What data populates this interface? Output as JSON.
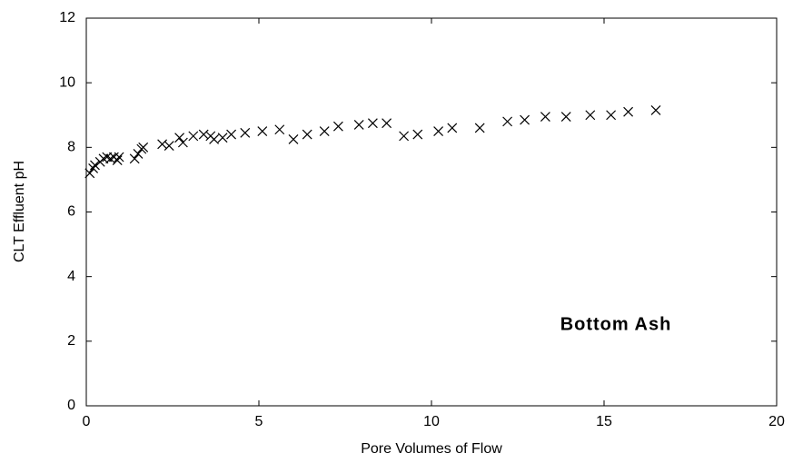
{
  "chart_data": {
    "type": "scatter",
    "x_label": "Pore Volumes of Flow",
    "y_label": "CLT Effluent pH",
    "annotation": "Bottom Ash",
    "color": "#000000",
    "marker": "x",
    "x": [
      0.1,
      0.2,
      0.25,
      0.4,
      0.5,
      0.6,
      0.7,
      0.8,
      0.9,
      0.95,
      1.4,
      1.5,
      1.6,
      1.65,
      2.2,
      2.4,
      2.7,
      2.8,
      3.1,
      3.4,
      3.6,
      3.7,
      3.95,
      4.2,
      4.6,
      5.1,
      5.6,
      6.0,
      6.4,
      6.9,
      7.3,
      7.9,
      8.3,
      8.7,
      9.2,
      9.6,
      10.2,
      10.6,
      11.4,
      12.2,
      12.7,
      13.3,
      13.9,
      14.6,
      15.2,
      15.7,
      16.5
    ],
    "values": [
      7.2,
      7.35,
      7.45,
      7.55,
      7.65,
      7.7,
      7.65,
      7.7,
      7.6,
      7.7,
      7.65,
      7.8,
      7.95,
      8.0,
      8.1,
      8.05,
      8.3,
      8.15,
      8.35,
      8.4,
      8.35,
      8.25,
      8.3,
      8.4,
      8.45,
      8.5,
      8.55,
      8.25,
      8.4,
      8.5,
      8.65,
      8.7,
      8.75,
      8.75,
      8.35,
      8.4,
      8.5,
      8.6,
      8.6,
      8.8,
      8.85,
      8.95,
      8.95,
      9.0,
      9.0,
      9.1,
      9.15
    ],
    "xlim": [
      0,
      20
    ],
    "xticks": [
      0,
      5,
      10,
      15,
      20
    ],
    "ylim": [
      0,
      12
    ],
    "yticks": [
      0,
      2,
      4,
      6,
      8,
      10,
      12
    ]
  }
}
